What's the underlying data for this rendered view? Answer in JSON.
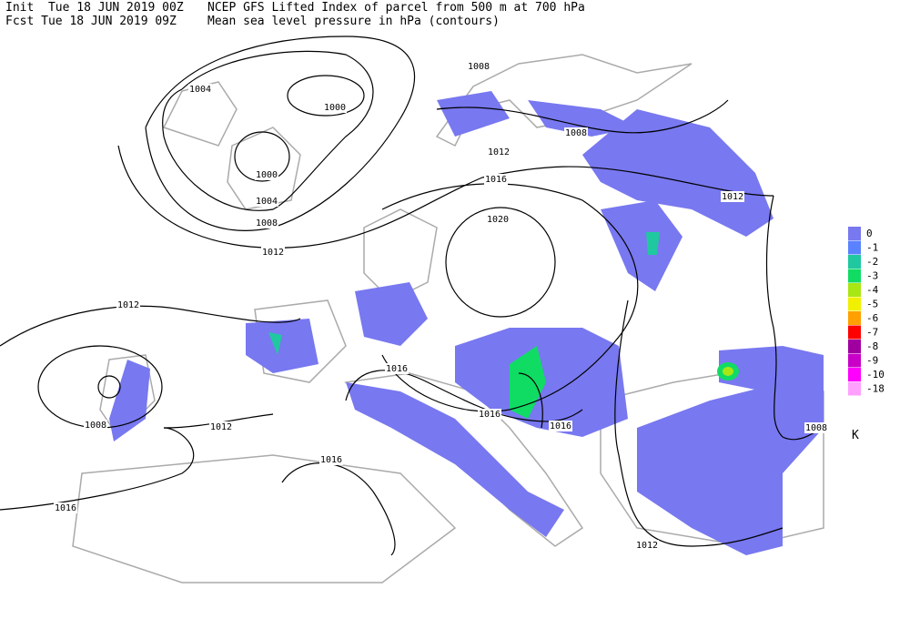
{
  "header": {
    "lines": [
      {
        "left": "Init  Tue 18 JUN 2019 00Z",
        "right": "NCEP GFS Lifted Index of parcel from 500 m at 700 hPa"
      },
      {
        "left": "Fcst Tue 18 JUN 2019 09Z",
        "right": "Mean sea level pressure in hPa (contours)"
      }
    ]
  },
  "legend": {
    "items": [
      {
        "label": "0",
        "color": "#7878f0"
      },
      {
        "label": "-1",
        "color": "#5a82ff"
      },
      {
        "label": "-2",
        "color": "#20c8a0"
      },
      {
        "label": "-3",
        "color": "#10dc64"
      },
      {
        "label": "-4",
        "color": "#a8e614"
      },
      {
        "label": "-5",
        "color": "#f0f000"
      },
      {
        "label": "-6",
        "color": "#ffa000"
      },
      {
        "label": "-7",
        "color": "#ff0000"
      },
      {
        "label": "-8",
        "color": "#a000a0"
      },
      {
        "label": "-9",
        "color": "#c800c8"
      },
      {
        "label": "-10",
        "color": "#ff00ff"
      },
      {
        "label": "-18",
        "color": "#ffa0ff"
      }
    ],
    "unit": "K"
  },
  "contour_labels": [
    "1008",
    "1004",
    "1000",
    "1000",
    "1008",
    "1012",
    "1016",
    "1004",
    "1008",
    "1020",
    "1012",
    "1012",
    "1012",
    "1016",
    "1016",
    "1016",
    "1008",
    "1012",
    "1008",
    "1016",
    "1016",
    "1012"
  ]
}
